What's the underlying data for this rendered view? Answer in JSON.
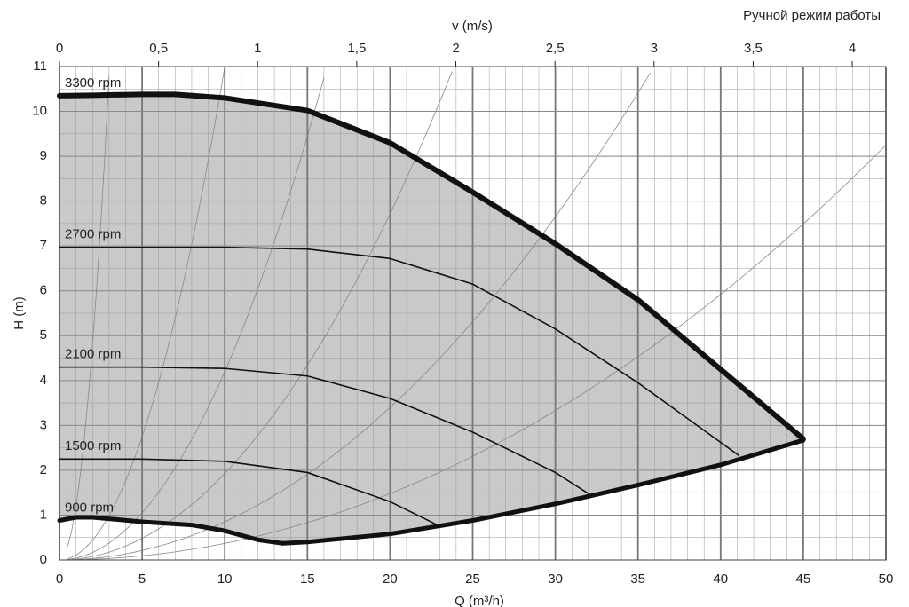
{
  "chart_data": {
    "type": "line",
    "title": "Ручной режим работы",
    "x_label": "Q (m³/h)",
    "y_label": "H (m)",
    "x2_label": "v (m/s)",
    "xlim": [
      0,
      50
    ],
    "xticks": [
      0,
      5,
      10,
      15,
      20,
      25,
      30,
      35,
      40,
      45,
      50
    ],
    "ylim": [
      0,
      11
    ],
    "yticks": [
      0,
      1,
      2,
      3,
      4,
      5,
      6,
      7,
      8,
      9,
      10,
      11
    ],
    "x2lim": [
      0,
      4.17
    ],
    "x2ticks": [
      0,
      {
        "value": 0.5,
        "label": "0,5"
      },
      1,
      {
        "value": 1.5,
        "label": "1,5"
      },
      2,
      {
        "value": 2.5,
        "label": "2,5"
      },
      3,
      {
        "value": 3.5,
        "label": "3,5"
      },
      4
    ],
    "grid": true,
    "fill_color": "#c8c9cb",
    "series": [
      {
        "name": "3300 rpm",
        "color": "#111111",
        "width": 6,
        "x": [
          0,
          2,
          5,
          7,
          10,
          15,
          20,
          25,
          30,
          35,
          40,
          45
        ],
        "values": [
          10.35,
          10.36,
          10.38,
          10.38,
          10.3,
          10.02,
          9.3,
          8.2,
          7.05,
          5.8,
          4.25,
          2.7
        ]
      },
      {
        "name": "2700 rpm",
        "color": "#111111",
        "width": 1.6,
        "x": [
          0,
          5,
          10,
          15,
          20,
          25,
          30,
          35,
          41.1
        ],
        "values": [
          6.97,
          6.97,
          6.97,
          6.93,
          6.72,
          6.15,
          5.15,
          3.95,
          2.33
        ]
      },
      {
        "name": "2100 rpm",
        "color": "#111111",
        "width": 1.6,
        "x": [
          0,
          5,
          10,
          15,
          20,
          25,
          30,
          32
        ],
        "values": [
          4.3,
          4.3,
          4.27,
          4.1,
          3.6,
          2.85,
          1.95,
          1.48
        ]
      },
      {
        "name": "1500 rpm",
        "color": "#111111",
        "width": 1.6,
        "x": [
          0,
          5,
          10,
          15,
          20,
          22.7
        ],
        "values": [
          2.25,
          2.25,
          2.2,
          1.95,
          1.3,
          0.81
        ]
      },
      {
        "name": "900 rpm",
        "color": "#111111",
        "width": 5,
        "x": [
          0,
          1,
          2,
          5,
          8,
          10,
          12,
          13.5
        ],
        "values": [
          0.88,
          0.95,
          0.95,
          0.85,
          0.78,
          0.65,
          0.45,
          0.37
        ]
      },
      {
        "color": "#111111",
        "width": 5,
        "x": [
          13.5,
          15,
          20,
          25,
          30,
          35,
          40,
          45
        ],
        "values": [
          0.37,
          0.4,
          0.58,
          0.88,
          1.25,
          1.67,
          2.12,
          2.67
        ]
      }
    ]
  }
}
